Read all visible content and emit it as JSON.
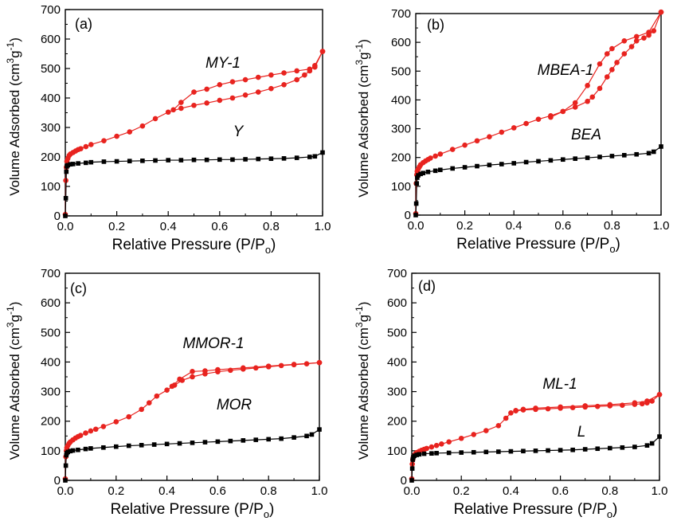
{
  "chart_data": [
    {
      "type": "line",
      "panel_label": "(a)",
      "xlabel": "Relative Pressure (P/P",
      "xlabel_sub": "o",
      "xlabel_end": ")",
      "ylabel": "Volume Adsorbed (cm",
      "ylabel_sup1": "3",
      "ylabel_mid": "g",
      "ylabel_sup2": "-1",
      "ylabel_end": ")",
      "xlim": [
        0,
        1.0
      ],
      "ylim": [
        0,
        700
      ],
      "xticks": [
        "0.0",
        "0.2",
        "0.4",
        "0.6",
        "0.8",
        "1.0"
      ],
      "yticks": [
        "0",
        "100",
        "200",
        "300",
        "400",
        "500",
        "600",
        "700"
      ],
      "series": [
        {
          "name": "MY-1",
          "color": "#e8231f",
          "marker": "circle",
          "x": [
            0.0,
            0.002,
            0.004,
            0.006,
            0.01,
            0.015,
            0.02,
            0.03,
            0.04,
            0.05,
            0.06,
            0.08,
            0.1,
            0.15,
            0.2,
            0.25,
            0.3,
            0.35,
            0.4,
            0.45,
            0.5,
            0.55,
            0.6,
            0.65,
            0.7,
            0.75,
            0.8,
            0.85,
            0.9,
            0.93,
            0.95,
            0.97,
            1.0
          ],
          "y": [
            5,
            120,
            165,
            185,
            195,
            205,
            210,
            215,
            220,
            225,
            228,
            235,
            242,
            255,
            270,
            285,
            305,
            330,
            352,
            365,
            375,
            383,
            392,
            400,
            410,
            420,
            432,
            445,
            462,
            478,
            492,
            510,
            558
          ]
        },
        {
          "name": "MY-1 desorption",
          "color": "#e8231f",
          "marker": "circle",
          "x": [
            1.0,
            0.97,
            0.95,
            0.9,
            0.85,
            0.8,
            0.75,
            0.7,
            0.65,
            0.6,
            0.55,
            0.5,
            0.45,
            0.42
          ],
          "y": [
            558,
            505,
            498,
            492,
            485,
            478,
            470,
            462,
            455,
            445,
            430,
            420,
            385,
            360
          ]
        },
        {
          "name": "Y",
          "color": "#000000",
          "marker": "square",
          "x": [
            0.0,
            0.002,
            0.004,
            0.006,
            0.01,
            0.02,
            0.03,
            0.05,
            0.08,
            0.1,
            0.15,
            0.2,
            0.25,
            0.3,
            0.35,
            0.4,
            0.45,
            0.5,
            0.55,
            0.6,
            0.65,
            0.7,
            0.75,
            0.8,
            0.85,
            0.9,
            0.95,
            0.97,
            1.0
          ],
          "y": [
            0,
            60,
            150,
            168,
            172,
            175,
            176,
            178,
            180,
            182,
            184,
            185,
            186,
            187,
            188,
            189,
            189,
            190,
            190,
            191,
            191,
            192,
            193,
            194,
            195,
            197,
            200,
            202,
            215
          ]
        }
      ]
    },
    {
      "type": "line",
      "panel_label": "(b)",
      "xlabel": "Relative Pressure (P/P",
      "xlabel_sub": "o",
      "xlabel_end": ")",
      "ylabel": "Volume Adsorbed (cm",
      "ylabel_sup1": "3",
      "ylabel_mid": "g",
      "ylabel_sup2": "-1",
      "ylabel_end": ")",
      "xlim": [
        0,
        1.0
      ],
      "ylim": [
        0,
        700
      ],
      "xticks": [
        "0.0",
        "0.2",
        "0.4",
        "0.6",
        "0.8",
        "1.0"
      ],
      "yticks": [
        "0",
        "100",
        "200",
        "300",
        "400",
        "500",
        "600",
        "700"
      ],
      "series": [
        {
          "name": "MBEA-1",
          "color": "#e8231f",
          "marker": "circle",
          "x": [
            0.0,
            0.002,
            0.004,
            0.006,
            0.01,
            0.015,
            0.02,
            0.03,
            0.04,
            0.05,
            0.06,
            0.08,
            0.1,
            0.15,
            0.2,
            0.25,
            0.3,
            0.35,
            0.4,
            0.45,
            0.5,
            0.55,
            0.6,
            0.65,
            0.7,
            0.72,
            0.75,
            0.78,
            0.8,
            0.82,
            0.85,
            0.88,
            0.9,
            0.93,
            0.95,
            0.97,
            1.0
          ],
          "y": [
            5,
            110,
            140,
            152,
            160,
            168,
            175,
            182,
            188,
            193,
            198,
            205,
            212,
            228,
            243,
            258,
            272,
            288,
            303,
            318,
            333,
            345,
            360,
            375,
            395,
            410,
            440,
            480,
            505,
            530,
            560,
            585,
            605,
            615,
            625,
            640,
            705
          ]
        },
        {
          "name": "MBEA-1 desorption",
          "color": "#e8231f",
          "marker": "circle",
          "x": [
            1.0,
            0.95,
            0.9,
            0.85,
            0.8,
            0.78,
            0.75,
            0.7,
            0.65,
            0.6,
            0.55
          ],
          "y": [
            705,
            635,
            620,
            605,
            578,
            560,
            525,
            450,
            390,
            360,
            340
          ]
        },
        {
          "name": "BEA",
          "color": "#000000",
          "marker": "square",
          "x": [
            0.0,
            0.002,
            0.004,
            0.006,
            0.01,
            0.02,
            0.03,
            0.05,
            0.08,
            0.1,
            0.15,
            0.2,
            0.25,
            0.3,
            0.35,
            0.4,
            0.45,
            0.5,
            0.55,
            0.6,
            0.65,
            0.7,
            0.75,
            0.8,
            0.85,
            0.9,
            0.95,
            0.97,
            1.0
          ],
          "y": [
            0,
            40,
            110,
            130,
            138,
            143,
            146,
            150,
            154,
            157,
            162,
            166,
            170,
            174,
            177,
            180,
            184,
            187,
            190,
            193,
            196,
            199,
            202,
            205,
            208,
            211,
            215,
            220,
            238
          ]
        }
      ]
    },
    {
      "type": "line",
      "panel_label": "(c)",
      "xlabel": "Relative Pressure (P/P",
      "xlabel_sub": "o",
      "xlabel_end": ")",
      "ylabel": "Volume Adsorbed (cm",
      "ylabel_sup1": "3",
      "ylabel_mid": "g",
      "ylabel_sup2": "-1",
      "ylabel_end": ")",
      "xlim": [
        0,
        1.0
      ],
      "ylim": [
        0,
        700
      ],
      "xticks": [
        "0.0",
        "0.2",
        "0.4",
        "0.6",
        "0.8",
        "1.0"
      ],
      "yticks": [
        "0",
        "100",
        "200",
        "300",
        "400",
        "500",
        "600",
        "700"
      ],
      "series": [
        {
          "name": "MMOR-1",
          "color": "#e8231f",
          "marker": "circle",
          "x": [
            0.0,
            0.002,
            0.004,
            0.006,
            0.01,
            0.015,
            0.02,
            0.03,
            0.04,
            0.05,
            0.06,
            0.08,
            0.1,
            0.12,
            0.15,
            0.2,
            0.25,
            0.3,
            0.33,
            0.36,
            0.4,
            0.43,
            0.46,
            0.5,
            0.55,
            0.6,
            0.65,
            0.7,
            0.75,
            0.8,
            0.85,
            0.9,
            0.95,
            1.0
          ],
          "y": [
            5,
            80,
            100,
            110,
            118,
            125,
            130,
            137,
            143,
            148,
            152,
            160,
            167,
            173,
            182,
            198,
            215,
            240,
            262,
            285,
            305,
            322,
            338,
            350,
            360,
            367,
            372,
            376,
            380,
            384,
            388,
            391,
            394,
            398
          ]
        },
        {
          "name": "MMOR-1 desorption",
          "color": "#e8231f",
          "marker": "circle",
          "x": [
            1.0,
            0.9,
            0.8,
            0.7,
            0.6,
            0.55,
            0.5,
            0.45,
            0.42
          ],
          "y": [
            398,
            392,
            386,
            380,
            374,
            370,
            368,
            342,
            318
          ]
        },
        {
          "name": "MOR",
          "color": "#000000",
          "marker": "square",
          "x": [
            0.0,
            0.002,
            0.004,
            0.006,
            0.01,
            0.02,
            0.03,
            0.05,
            0.08,
            0.1,
            0.15,
            0.2,
            0.25,
            0.3,
            0.35,
            0.4,
            0.45,
            0.5,
            0.55,
            0.6,
            0.65,
            0.7,
            0.75,
            0.8,
            0.85,
            0.9,
            0.95,
            0.97,
            1.0
          ],
          "y": [
            0,
            50,
            85,
            92,
            96,
            99,
            101,
            103,
            106,
            108,
            111,
            114,
            117,
            119,
            121,
            123,
            125,
            127,
            129,
            131,
            133,
            135,
            137,
            139,
            141,
            145,
            150,
            155,
            172
          ]
        }
      ]
    },
    {
      "type": "line",
      "panel_label": "(d)",
      "xlabel": "Relative Pressure (P/P",
      "xlabel_sub": "o",
      "xlabel_end": ")",
      "ylabel": "Volume Adsorbed (cm",
      "ylabel_sup1": "3",
      "ylabel_mid": "g",
      "ylabel_sup2": "-1",
      "ylabel_end": ")",
      "xlim": [
        0,
        1.0
      ],
      "ylim": [
        0,
        700
      ],
      "xticks": [
        "0.0",
        "0.2",
        "0.4",
        "0.6",
        "0.8",
        "1.0"
      ],
      "yticks": [
        "0",
        "100",
        "200",
        "300",
        "400",
        "500",
        "600",
        "700"
      ],
      "series": [
        {
          "name": "ML-1",
          "color": "#e8231f",
          "marker": "circle",
          "x": [
            0.0,
            0.002,
            0.004,
            0.006,
            0.01,
            0.015,
            0.02,
            0.03,
            0.04,
            0.05,
            0.06,
            0.08,
            0.1,
            0.12,
            0.15,
            0.2,
            0.25,
            0.3,
            0.35,
            0.38,
            0.4,
            0.42,
            0.45,
            0.5,
            0.55,
            0.6,
            0.65,
            0.7,
            0.75,
            0.8,
            0.85,
            0.9,
            0.93,
            0.95,
            0.97,
            1.0
          ],
          "y": [
            5,
            55,
            70,
            78,
            85,
            90,
            94,
            98,
            102,
            105,
            108,
            113,
            118,
            123,
            130,
            142,
            155,
            168,
            185,
            210,
            228,
            235,
            238,
            240,
            242,
            244,
            246,
            248,
            250,
            252,
            254,
            257,
            259,
            262,
            268,
            290
          ]
        },
        {
          "name": "ML-1 desorption",
          "color": "#e8231f",
          "marker": "circle",
          "x": [
            1.0,
            0.95,
            0.9,
            0.8,
            0.7,
            0.6,
            0.5,
            0.45,
            0.42
          ],
          "y": [
            290,
            268,
            262,
            256,
            252,
            248,
            244,
            240,
            236
          ]
        },
        {
          "name": "L",
          "color": "#000000",
          "marker": "square",
          "x": [
            0.0,
            0.002,
            0.004,
            0.006,
            0.01,
            0.02,
            0.03,
            0.05,
            0.08,
            0.1,
            0.15,
            0.2,
            0.25,
            0.3,
            0.35,
            0.4,
            0.45,
            0.5,
            0.55,
            0.6,
            0.65,
            0.7,
            0.75,
            0.8,
            0.85,
            0.9,
            0.95,
            0.97,
            1.0
          ],
          "y": [
            0,
            40,
            70,
            78,
            83,
            86,
            88,
            90,
            91,
            92,
            93,
            94,
            95,
            96,
            97,
            98,
            99,
            100,
            101,
            102,
            103,
            105,
            107,
            109,
            111,
            113,
            118,
            125,
            148
          ]
        }
      ]
    }
  ],
  "series_labels": [
    [
      {
        "text": "MY-1"
      },
      {
        "text": "Y"
      }
    ],
    [
      {
        "text": "MBEA-1"
      },
      {
        "text": "BEA"
      }
    ],
    [
      {
        "text": "MMOR-1"
      },
      {
        "text": "MOR"
      }
    ],
    [
      {
        "text": "ML-1"
      },
      {
        "text": "L"
      }
    ]
  ]
}
